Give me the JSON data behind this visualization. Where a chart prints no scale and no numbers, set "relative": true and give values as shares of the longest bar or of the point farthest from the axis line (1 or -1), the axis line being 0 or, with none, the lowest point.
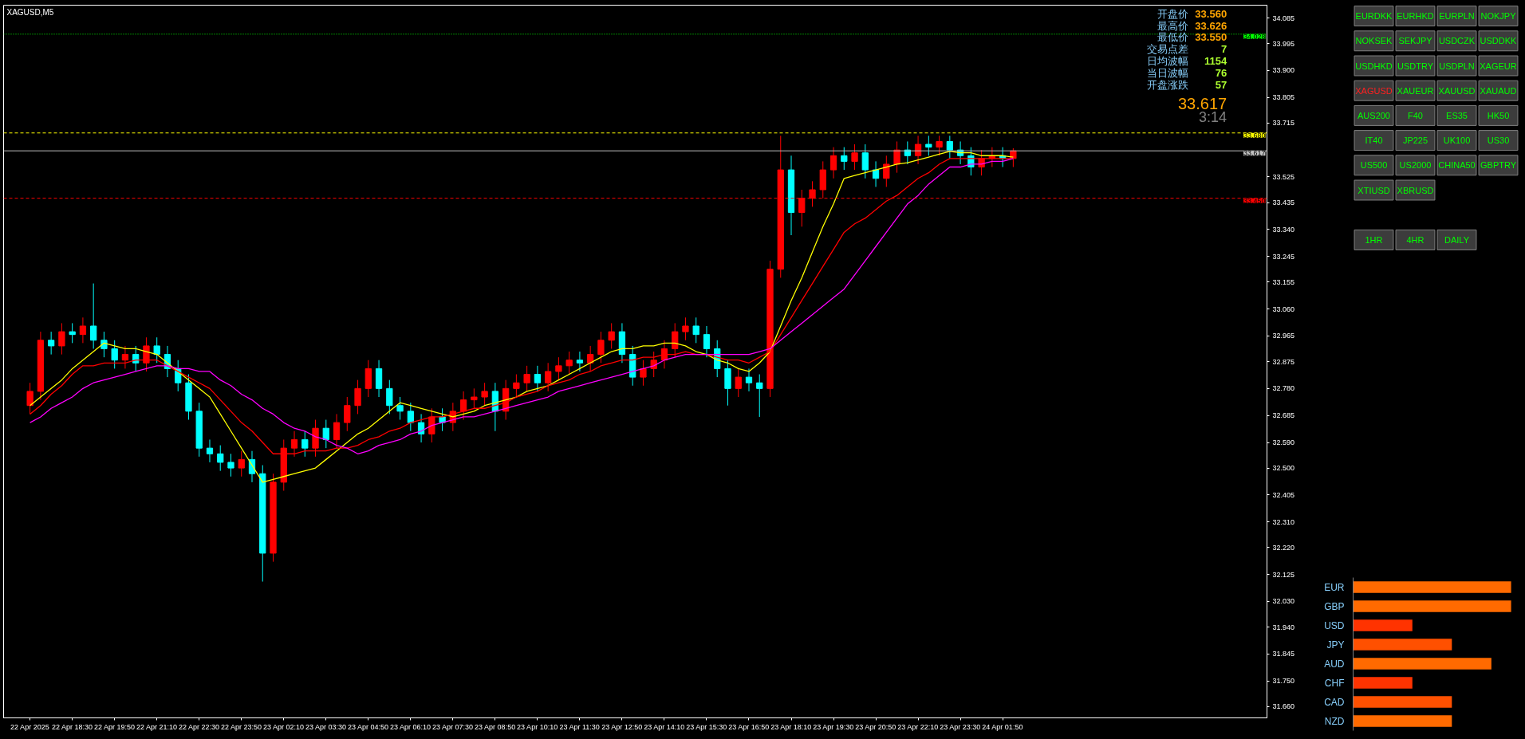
{
  "chart_data": [
    {
      "type": "candlestick",
      "title": "XAGUSD,M5",
      "categories": [
        "22 Apr 2025",
        null,
        null,
        null,
        "22 Apr 18:30",
        null,
        null,
        null,
        "22 Apr 19:50",
        null,
        null,
        null,
        "22 Apr 21:10",
        null,
        null,
        null,
        "22 Apr 22:30",
        null,
        null,
        null,
        "22 Apr 23:50",
        null,
        null,
        null,
        "23 Apr 02:10",
        null,
        null,
        null,
        "23 Apr 03:30",
        null,
        null,
        null,
        "23 Apr 04:50",
        null,
        null,
        null,
        "23 Apr 06:10",
        null,
        null,
        null,
        "23 Apr 07:30",
        null,
        null,
        null,
        "23 Apr 08:50",
        null,
        null,
        null,
        "23 Apr 10:10",
        null,
        null,
        null,
        "23 Apr 11:30",
        null,
        null,
        null,
        "23 Apr 12:50",
        null,
        null,
        null,
        "23 Apr 14:10",
        null,
        null,
        null,
        "23 Apr 15:30",
        null,
        null,
        null,
        "23 Apr 16:50",
        null,
        null,
        null,
        "23 Apr 18:10",
        null,
        null,
        null,
        "23 Apr 19:30",
        null,
        null,
        null,
        "23 Apr 20:50",
        null,
        null,
        null,
        "23 Apr 22:10",
        null,
        null,
        null,
        "23 Apr 23:30",
        null,
        null,
        null,
        "24 Apr 01:50",
        null
      ],
      "ohlc": [
        [
          32.72,
          32.8,
          32.69,
          32.77
        ],
        [
          32.77,
          32.98,
          32.74,
          32.95
        ],
        [
          32.95,
          32.98,
          32.9,
          32.93
        ],
        [
          32.93,
          33.01,
          32.9,
          32.98
        ],
        [
          32.98,
          33.01,
          32.94,
          32.97
        ],
        [
          32.97,
          33.03,
          32.94,
          33.0
        ],
        [
          33.0,
          33.15,
          32.92,
          32.95
        ],
        [
          32.95,
          32.98,
          32.89,
          32.92
        ],
        [
          32.92,
          32.95,
          32.85,
          32.88
        ],
        [
          32.88,
          32.93,
          32.85,
          32.9
        ],
        [
          32.9,
          32.93,
          32.84,
          32.87
        ],
        [
          32.87,
          32.96,
          32.84,
          32.93
        ],
        [
          32.93,
          32.96,
          32.87,
          32.9
        ],
        [
          32.9,
          32.93,
          32.82,
          32.85
        ],
        [
          32.85,
          32.88,
          32.77,
          32.8
        ],
        [
          32.8,
          32.83,
          32.67,
          32.7
        ],
        [
          32.7,
          32.73,
          32.54,
          32.57
        ],
        [
          32.57,
          32.6,
          32.52,
          32.55
        ],
        [
          32.55,
          32.58,
          32.49,
          32.52
        ],
        [
          32.52,
          32.55,
          32.47,
          32.5
        ],
        [
          32.5,
          32.56,
          32.47,
          32.53
        ],
        [
          32.53,
          32.56,
          32.45,
          32.48
        ],
        [
          32.48,
          32.51,
          32.1,
          32.2
        ],
        [
          32.2,
          32.48,
          32.17,
          32.45
        ],
        [
          32.45,
          32.6,
          32.42,
          32.57
        ],
        [
          32.57,
          32.63,
          32.54,
          32.6
        ],
        [
          32.6,
          32.63,
          32.54,
          32.57
        ],
        [
          32.57,
          32.67,
          32.54,
          32.64
        ],
        [
          32.64,
          32.67,
          32.57,
          32.6
        ],
        [
          32.6,
          32.69,
          32.57,
          32.66
        ],
        [
          32.66,
          32.75,
          32.63,
          32.72
        ],
        [
          32.72,
          32.81,
          32.69,
          32.78
        ],
        [
          32.78,
          32.88,
          32.75,
          32.85
        ],
        [
          32.85,
          32.88,
          32.75,
          32.78
        ],
        [
          32.78,
          32.81,
          32.69,
          32.72
        ],
        [
          32.72,
          32.75,
          32.67,
          32.7
        ],
        [
          32.7,
          32.73,
          32.63,
          32.66
        ],
        [
          32.66,
          32.69,
          32.59,
          32.62
        ],
        [
          32.62,
          32.71,
          32.59,
          32.68
        ],
        [
          32.68,
          32.71,
          32.63,
          32.66
        ],
        [
          32.66,
          32.73,
          32.63,
          32.7
        ],
        [
          32.7,
          32.77,
          32.67,
          32.74
        ],
        [
          32.74,
          32.78,
          32.71,
          32.75
        ],
        [
          32.75,
          32.8,
          32.72,
          32.77
        ],
        [
          32.77,
          32.8,
          32.63,
          32.7
        ],
        [
          32.7,
          32.81,
          32.67,
          32.78
        ],
        [
          32.78,
          32.83,
          32.75,
          32.8
        ],
        [
          32.8,
          32.86,
          32.77,
          32.83
        ],
        [
          32.83,
          32.86,
          32.77,
          32.8
        ],
        [
          32.8,
          32.87,
          32.77,
          32.84
        ],
        [
          32.84,
          32.89,
          32.81,
          32.86
        ],
        [
          32.86,
          32.91,
          32.83,
          32.88
        ],
        [
          32.88,
          32.91,
          32.84,
          32.87
        ],
        [
          32.87,
          32.93,
          32.84,
          32.9
        ],
        [
          32.9,
          32.98,
          32.87,
          32.95
        ],
        [
          32.95,
          33.01,
          32.92,
          32.98
        ],
        [
          32.98,
          33.01,
          32.87,
          32.9
        ],
        [
          32.9,
          32.93,
          32.79,
          32.82
        ],
        [
          32.82,
          32.88,
          32.79,
          32.85
        ],
        [
          32.85,
          32.91,
          32.82,
          32.88
        ],
        [
          32.88,
          32.95,
          32.85,
          32.92
        ],
        [
          32.92,
          33.01,
          32.89,
          32.98
        ],
        [
          32.98,
          33.03,
          32.95,
          33.0
        ],
        [
          33.0,
          33.03,
          32.94,
          32.97
        ],
        [
          32.97,
          33.0,
          32.89,
          32.92
        ],
        [
          32.92,
          32.95,
          32.82,
          32.85
        ],
        [
          32.85,
          32.88,
          32.72,
          32.78
        ],
        [
          32.78,
          32.85,
          32.75,
          32.82
        ],
        [
          32.82,
          32.85,
          32.77,
          32.8
        ],
        [
          32.8,
          32.83,
          32.68,
          32.78
        ],
        [
          32.78,
          33.23,
          32.75,
          33.2
        ],
        [
          33.2,
          33.67,
          33.17,
          33.55
        ],
        [
          33.55,
          33.6,
          33.32,
          33.4
        ],
        [
          33.4,
          33.48,
          33.35,
          33.45
        ],
        [
          33.45,
          33.51,
          33.42,
          33.48
        ],
        [
          33.48,
          33.58,
          33.45,
          33.55
        ],
        [
          33.55,
          33.63,
          33.52,
          33.6
        ],
        [
          33.6,
          33.63,
          33.55,
          33.58
        ],
        [
          33.58,
          33.64,
          33.55,
          33.61
        ],
        [
          33.61,
          33.64,
          33.52,
          33.55
        ],
        [
          33.55,
          33.58,
          33.49,
          33.52
        ],
        [
          33.52,
          33.6,
          33.49,
          33.57
        ],
        [
          33.57,
          33.65,
          33.54,
          33.62
        ],
        [
          33.62,
          33.65,
          33.57,
          33.6
        ],
        [
          33.6,
          33.67,
          33.57,
          33.64
        ],
        [
          33.64,
          33.67,
          33.6,
          33.63
        ],
        [
          33.63,
          33.67,
          33.6,
          33.65
        ],
        [
          33.65,
          33.67,
          33.59,
          33.62
        ],
        [
          33.62,
          33.65,
          33.57,
          33.6
        ],
        [
          33.6,
          33.63,
          33.53,
          33.56
        ],
        [
          33.56,
          33.62,
          33.53,
          33.59
        ],
        [
          33.59,
          33.63,
          33.56,
          33.6
        ],
        [
          33.6,
          33.63,
          33.56,
          33.59
        ],
        [
          33.59,
          33.626,
          33.56,
          33.617
        ]
      ],
      "colors": [
        "#ff0000",
        "#ff0000",
        "#00ffff",
        "#ff0000",
        "#00ffff",
        "#ff0000",
        "#00ffff",
        "#00ffff",
        "#00ffff",
        "#ff0000",
        "#00ffff",
        "#ff0000",
        "#00ffff",
        "#00ffff",
        "#00ffff",
        "#00ffff",
        "#00ffff",
        "#00ffff",
        "#00ffff",
        "#00ffff",
        "#ff0000",
        "#00ffff",
        "#00ffff",
        "#ff0000",
        "#ff0000",
        "#ff0000",
        "#00ffff",
        "#ff0000",
        "#00ffff",
        "#ff0000",
        "#ff0000",
        "#ff0000",
        "#ff0000",
        "#00ffff",
        "#00ffff",
        "#00ffff",
        "#00ffff",
        "#00ffff",
        "#ff0000",
        "#00ffff",
        "#ff0000",
        "#ff0000",
        "#ff0000",
        "#ff0000",
        "#00ffff",
        "#ff0000",
        "#ff0000",
        "#ff0000",
        "#00ffff",
        "#ff0000",
        "#ff0000",
        "#ff0000",
        "#00ffff",
        "#ff0000",
        "#ff0000",
        "#ff0000",
        "#00ffff",
        "#00ffff",
        "#ff0000",
        "#ff0000",
        "#ff0000",
        "#ff0000",
        "#ff0000",
        "#00ffff",
        "#00ffff",
        "#00ffff",
        "#00ffff",
        "#ff0000",
        "#00ffff",
        "#00ffff",
        "#ff0000",
        "#ff0000",
        "#00ffff",
        "#ff0000",
        "#ff0000",
        "#ff0000",
        "#ff0000",
        "#00ffff",
        "#ff0000",
        "#00ffff",
        "#00ffff",
        "#ff0000",
        "#ff0000",
        "#00ffff",
        "#ff0000",
        "#00ffff",
        "#ff0000",
        "#00ffff",
        "#00ffff",
        "#00ffff",
        "#ff0000",
        "#ff0000",
        "#00ffff",
        "#ff0000"
      ],
      "series": [
        {
          "type": "line",
          "color": "#ffff00",
          "values": [
            32.72,
            32.75,
            32.78,
            32.81,
            32.85,
            32.88,
            32.91,
            32.94,
            32.93,
            32.92,
            32.92,
            32.91,
            32.9,
            32.87,
            32.84,
            32.81,
            32.78,
            32.75,
            32.69,
            32.63,
            32.57,
            32.51,
            32.45,
            32.46,
            32.47,
            32.48,
            32.49,
            32.5,
            32.53,
            32.56,
            32.59,
            32.62,
            32.64,
            32.67,
            32.7,
            32.73,
            32.72,
            32.71,
            32.7,
            32.69,
            32.68,
            32.69,
            32.7,
            32.72,
            32.73,
            32.74,
            32.75,
            32.77,
            32.78,
            32.79,
            32.81,
            32.83,
            32.85,
            32.87,
            32.89,
            32.91,
            32.92,
            32.92,
            32.93,
            32.93,
            32.94,
            32.94,
            32.93,
            32.91,
            32.9,
            32.88,
            32.87,
            32.85,
            32.84,
            32.87,
            32.91,
            33.0,
            33.09,
            33.17,
            33.26,
            33.35,
            33.43,
            33.52,
            33.53,
            33.54,
            33.55,
            33.56,
            33.57,
            33.575,
            33.585,
            33.595,
            33.605,
            33.615,
            33.61,
            33.61,
            33.6,
            33.6,
            33.6,
            33.595
          ]
        },
        {
          "type": "line",
          "color": "#ff0000",
          "values": [
            32.69,
            32.72,
            32.76,
            32.79,
            32.83,
            32.86,
            32.86,
            32.87,
            32.87,
            32.87,
            32.88,
            32.88,
            32.88,
            32.86,
            32.84,
            32.82,
            32.8,
            32.78,
            32.74,
            32.7,
            32.66,
            32.63,
            32.59,
            32.55,
            32.55,
            32.55,
            32.56,
            32.56,
            32.56,
            32.57,
            32.57,
            32.58,
            32.6,
            32.61,
            32.63,
            32.64,
            32.66,
            32.67,
            32.68,
            32.68,
            32.69,
            32.7,
            32.71,
            32.71,
            32.72,
            32.73,
            32.75,
            32.76,
            32.77,
            32.79,
            32.8,
            32.81,
            32.83,
            32.84,
            32.86,
            32.87,
            32.88,
            32.88,
            32.89,
            32.89,
            32.9,
            32.9,
            32.91,
            32.9,
            32.9,
            32.89,
            32.88,
            32.88,
            32.87,
            32.89,
            32.91,
            32.97,
            33.03,
            33.09,
            33.15,
            33.21,
            33.27,
            33.33,
            33.36,
            33.38,
            33.41,
            33.44,
            33.46,
            33.49,
            33.52,
            33.54,
            33.57,
            33.59,
            33.59,
            33.59,
            33.59,
            33.59,
            33.59,
            33.59
          ]
        },
        {
          "type": "line",
          "color": "#ff00ff",
          "values": [
            32.66,
            32.68,
            32.71,
            32.73,
            32.75,
            32.78,
            32.8,
            32.81,
            32.82,
            32.83,
            32.84,
            32.85,
            32.86,
            32.86,
            32.85,
            32.85,
            32.84,
            32.84,
            32.81,
            32.79,
            32.76,
            32.74,
            32.71,
            32.69,
            32.66,
            32.64,
            32.63,
            32.61,
            32.6,
            32.58,
            32.57,
            32.55,
            32.56,
            32.58,
            32.59,
            32.6,
            32.62,
            32.63,
            32.65,
            32.66,
            32.67,
            32.68,
            32.68,
            32.69,
            32.7,
            32.71,
            32.72,
            32.73,
            32.74,
            32.75,
            32.77,
            32.78,
            32.79,
            32.8,
            32.81,
            32.82,
            32.83,
            32.84,
            32.85,
            32.86,
            32.88,
            32.89,
            32.9,
            32.9,
            32.9,
            32.9,
            32.9,
            32.9,
            32.9,
            32.91,
            32.92,
            32.95,
            32.98,
            33.01,
            33.04,
            33.07,
            33.1,
            33.13,
            33.18,
            33.23,
            33.28,
            33.33,
            33.38,
            33.43,
            33.46,
            33.5,
            33.53,
            33.56,
            33.56,
            33.57,
            33.57,
            33.58,
            33.58,
            33.59
          ]
        }
      ],
      "ylim": [
        31.62,
        34.13
      ],
      "yticks": [
        {
          "value": 31.66,
          "label": "31.660"
        },
        {
          "value": 31.75,
          "label": "31.750"
        },
        31.845,
        {
          "value": 31.94,
          "label": "31.940"
        },
        {
          "value": 32.03,
          "label": "32.030"
        },
        32.125,
        {
          "value": 32.22,
          "label": "32.220"
        },
        {
          "value": 32.31,
          "label": "32.310"
        },
        32.405,
        {
          "value": 32.5,
          "label": "32.500"
        },
        {
          "value": 32.59,
          "label": "32.590"
        },
        32.685,
        {
          "value": 32.78,
          "label": "32.780"
        },
        32.875,
        32.965,
        {
          "value": 33.06,
          "label": "33.060"
        },
        33.155,
        33.245,
        {
          "value": 33.34,
          "label": "33.340"
        },
        33.435,
        33.525,
        33.715,
        33.805,
        {
          "value": 33.9,
          "label": "33.900"
        },
        33.995,
        34.085
      ],
      "ref_lines": [
        {
          "axis": "y",
          "value": 34.028,
          "label": "34.028",
          "color": "#00ff00",
          "line_style": "dotted"
        },
        {
          "axis": "y",
          "value": 33.68,
          "label": "33.680",
          "color": "#ffff00",
          "line_style": "dashed"
        },
        {
          "axis": "y",
          "value": 33.617,
          "label": "33.617",
          "color": "#c0c0c0",
          "line_style": "solid"
        },
        {
          "axis": "y",
          "value": 33.45,
          "label": "33.450",
          "color": "#ff0000",
          "line_style": "dashed"
        }
      ],
      "annotations": [
        "开盘价",
        "33.560",
        "最高价",
        "33.626",
        "最低价",
        "33.550",
        "交易点差",
        "7",
        "日均波幅",
        "1154",
        "当日波幅",
        "76",
        "开盘涨跌",
        "57",
        "33.617",
        "3:14"
      ]
    },
    {
      "type": "other",
      "annotations": [
        "EURDKK",
        "EURHKD",
        "EURPLN",
        "NOKJPY",
        "NOKSEK",
        "SEKJPY",
        "USDCZK",
        "USDDKK",
        "USDHKD",
        "USDTRY",
        "USDPLN",
        "XAGEUR",
        "XAGUSD",
        "XAUEUR",
        "XAUUSD",
        "XAUAUD",
        "AUS200",
        "F40",
        "ES35",
        "HK50",
        "IT40",
        "JP225",
        "UK100",
        "US30",
        "US500",
        "US2000",
        "CHINA50",
        "GBPTRY",
        "XTIUSD",
        "XBRUSD",
        "1HR",
        "4HR",
        "DAILY"
      ]
    },
    {
      "type": "bar",
      "orientation": "horizontal",
      "relative": true,
      "categories": [
        "EUR",
        "GBP",
        "USD",
        "JPY",
        "AUD",
        "CHF",
        "CAD",
        "NZD"
      ],
      "values": [
        1,
        1,
        0.375,
        0.625,
        0.875,
        0.375,
        0.625,
        0.625
      ],
      "colors": [
        "#ff6a00",
        "#ff6a00",
        "#ff3300",
        "#ff5000",
        "#ff6a00",
        "#ff3300",
        "#ff5000",
        "#ff6a00"
      ]
    }
  ]
}
